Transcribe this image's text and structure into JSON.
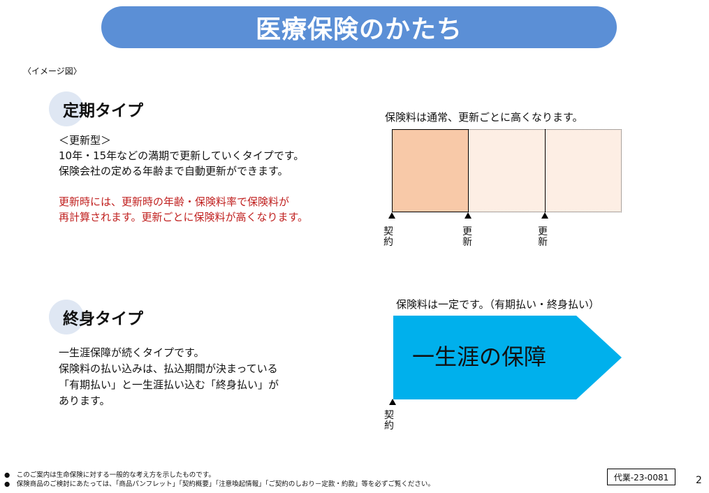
{
  "title": "医療保険のかたち",
  "image_note": "〈イメージ図〉",
  "term_type": {
    "heading": "定期タイプ",
    "lines": [
      "＜更新型＞",
      "10年・15年などの満期で更新していくタイプです。",
      "保険会社の定める年齢まで自動更新ができます。"
    ],
    "red_lines": [
      "更新時には、更新時の年齢・保険料率で保険料が",
      "再計算されます。更新ごとに保険料が高くなります。"
    ],
    "diagram_caption": "保険料は通常、更新ごとに高くなります。",
    "markers": [
      {
        "label_top": "契",
        "label_bottom": "約"
      },
      {
        "label_top": "更",
        "label_bottom": "新"
      },
      {
        "label_top": "更",
        "label_bottom": "新"
      }
    ]
  },
  "whole_life_type": {
    "heading": "終身タイプ",
    "lines": [
      "一生涯保障が続くタイプです。",
      "保険料の払い込みは、払込期間が決まっている",
      "「有期払い」と一生涯払い込む「終身払い」が",
      "あります。"
    ],
    "diagram_caption": "保険料は一定です。（有期払い・終身払い）",
    "arrow_label": "一生涯の保障",
    "marker": {
      "label_top": "契",
      "label_bottom": "約"
    }
  },
  "footnotes": [
    "●　このご案内は生命保険に対する一般的な考え方を示したものです。",
    "●　保険商品のご検討にあたっては、「商品パンフレット」「契約概要」「注意喚起情報」「ご契約のしおり－定款・約款」等を必ずご覧ください。"
  ],
  "doc_code": "代業-23-0081",
  "page_number": "2",
  "colors": {
    "title_bar": "#5b8fd6",
    "first_period": "#f8c9a8",
    "renewal_period": "#fdeee4",
    "lifetime_arrow": "#00b0ec",
    "red_text": "#c0201f"
  }
}
